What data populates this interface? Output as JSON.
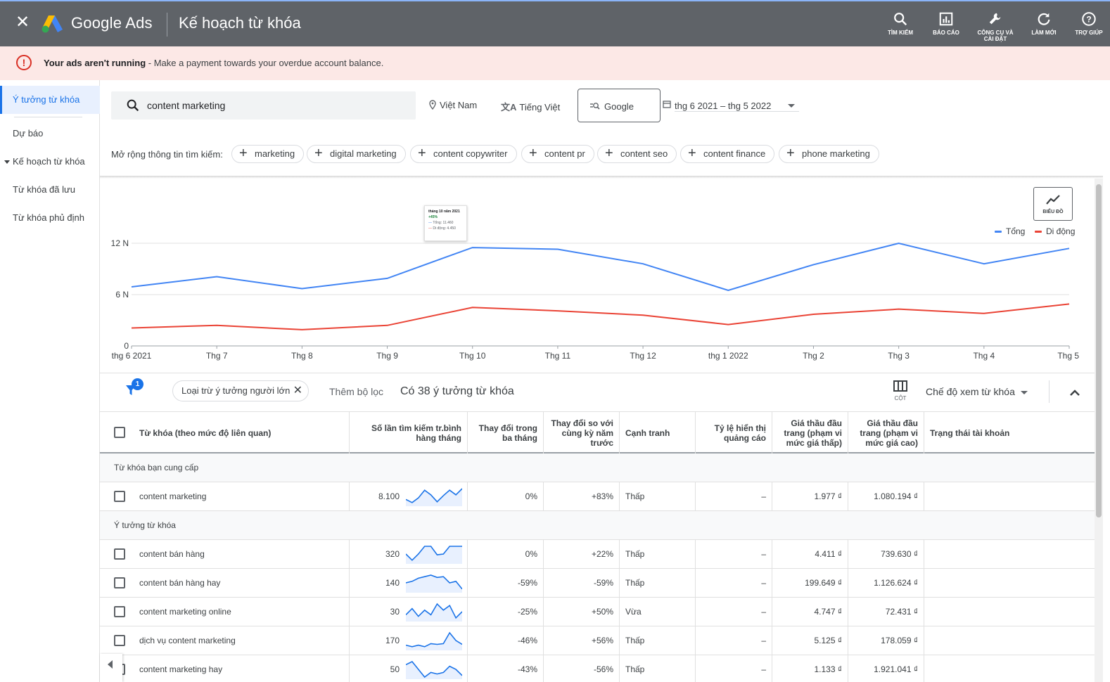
{
  "topbar": {
    "brand": "Google Ads",
    "title": "Kế hoạch từ khóa",
    "tools": [
      {
        "label": "TÌM KIẾM",
        "icon": "search-icon"
      },
      {
        "label": "BÁO CÁO",
        "icon": "report-icon"
      },
      {
        "label": "CÔNG CỤ VÀ CÀI ĐẶT",
        "icon": "wrench-icon"
      },
      {
        "label": "LÀM MỚI",
        "icon": "refresh-icon"
      },
      {
        "label": "TRỢ GIÚP",
        "icon": "help-icon"
      }
    ]
  },
  "alert": {
    "bold": "Your ads aren't running",
    "message": " - Make a payment towards your overdue account balance."
  },
  "sidebar": {
    "items": [
      {
        "label": "Ý tưởng từ khóa"
      },
      {
        "label": "Dự báo"
      },
      {
        "label": "Kế hoạch từ khóa"
      },
      {
        "label": "Từ khóa đã lưu"
      },
      {
        "label": "Từ khóa phủ định"
      }
    ]
  },
  "search": {
    "value": "content marketing",
    "location": "Việt Nam",
    "language": "Tiếng Việt",
    "network": "Google",
    "date_range": "thg 6 2021 – thg 5 2022"
  },
  "expand": {
    "label": "Mở rộng thông tin tìm kiếm:",
    "chips": [
      "marketing",
      "digital marketing",
      "content copywriter",
      "content pr",
      "content seo",
      "content finance",
      "phone marketing"
    ]
  },
  "chart_toggle": {
    "label": "BIỂU ĐỒ"
  },
  "tooltip": {
    "title": "tháng 10 năm 2021",
    "change": "+45%",
    "line1": "Tổng: 11.460",
    "line2": "Di động: 4.450"
  },
  "chart_data": {
    "type": "line",
    "categories": [
      "thg 6 2021",
      "Thg 7",
      "Thg 8",
      "Thg 9",
      "Thg 10",
      "Thg 11",
      "Thg 12",
      "thg 1 2022",
      "Thg 2",
      "Thg 3",
      "Thg 4",
      "Thg 5"
    ],
    "series": [
      {
        "name": "Tổng",
        "color": "#4285f4",
        "values": [
          6900,
          8100,
          6700,
          7900,
          11500,
          11300,
          9600,
          6500,
          9500,
          12000,
          9600,
          11400
        ]
      },
      {
        "name": "Di động",
        "color": "#ea4335",
        "values": [
          2100,
          2400,
          1900,
          2400,
          4500,
          4100,
          3600,
          2500,
          3700,
          4300,
          3800,
          4900
        ]
      }
    ],
    "yticks": [
      {
        "v": 0,
        "label": "0"
      },
      {
        "v": 6000,
        "label": "6 N"
      },
      {
        "v": 12000,
        "label": "12 N"
      }
    ],
    "ylim": [
      0,
      12000
    ],
    "legend": "top-right"
  },
  "filters": {
    "badge": "1",
    "exclude_chip": "Loại trừ ý tưởng người lớn",
    "add_filter": "Thêm bộ lọc",
    "count_text": "Có 38 ý tưởng từ khóa",
    "columns_label": "CỘT",
    "view_mode": "Chế độ xem từ khóa"
  },
  "table": {
    "headers": {
      "keyword": "Từ khóa (theo mức độ liên quan)",
      "volume": "Số lần tìm kiếm tr.bình hàng tháng",
      "three_month": "Thay đổi trong ba tháng",
      "yoy": "Thay đổi so với cùng kỳ năm trước",
      "competition": "Cạnh tranh",
      "impression_share": "Tỷ lệ hiển thị quảng cáo",
      "bid_low": "Giá thầu đầu trang (phạm vi mức giá thấp)",
      "bid_high": "Giá thầu đầu trang (phạm vi mức giá cao)",
      "status": "Trạng thái tài khoản"
    },
    "group_provided": "Từ khóa bạn cung cấp",
    "group_ideas": "Ý tưởng từ khóa",
    "provided": [
      {
        "keyword": "content marketing",
        "volume": "8.100",
        "three_month": "0%",
        "yoy": "+83%",
        "competition": "Thấp",
        "impression_share": "–",
        "bid_low": "1.977 ₫",
        "bid_high": "1.080.194 ₫",
        "trend": [
          0.3,
          0.1,
          0.4,
          0.9,
          0.6,
          0.15,
          0.55,
          0.9,
          0.6,
          1.0
        ]
      }
    ],
    "ideas": [
      {
        "keyword": "content bán hàng",
        "volume": "320",
        "three_month": "0%",
        "yoy": "+22%",
        "competition": "Thấp",
        "impression_share": "–",
        "bid_low": "4.411 ₫",
        "bid_high": "739.630 ₫",
        "trend": [
          0.5,
          0.1,
          0.5,
          1.0,
          1.0,
          0.45,
          0.5,
          1.0,
          1.0,
          1.0
        ]
      },
      {
        "keyword": "content bán hàng hay",
        "volume": "140",
        "three_month": "-59%",
        "yoy": "-59%",
        "competition": "Thấp",
        "impression_share": "–",
        "bid_low": "199.649 ₫",
        "bid_high": "1.126.624 ₫",
        "trend": [
          0.5,
          0.6,
          0.8,
          0.9,
          1.0,
          0.85,
          0.9,
          0.5,
          0.6,
          0.1
        ]
      },
      {
        "keyword": "content marketing online",
        "volume": "30",
        "three_month": "-25%",
        "yoy": "+50%",
        "competition": "Vừa",
        "impression_share": "–",
        "bid_low": "4.747 ₫",
        "bid_high": "72.431 ₫",
        "trend": [
          0.3,
          0.7,
          0.2,
          0.6,
          0.3,
          1.0,
          0.6,
          0.9,
          0.1,
          0.5
        ]
      },
      {
        "keyword": "dịch vụ content marketing",
        "volume": "170",
        "three_month": "-46%",
        "yoy": "+56%",
        "competition": "Thấp",
        "impression_share": "–",
        "bid_low": "5.125 ₫",
        "bid_high": "178.059 ₫",
        "trend": [
          0.2,
          0.1,
          0.2,
          0.1,
          0.3,
          0.25,
          0.3,
          1.0,
          0.5,
          0.25
        ]
      },
      {
        "keyword": "content marketing hay",
        "volume": "50",
        "three_month": "-43%",
        "yoy": "-56%",
        "competition": "Thấp",
        "impression_share": "–",
        "bid_low": "1.133 ₫",
        "bid_high": "1.921.041 ₫",
        "trend": [
          0.8,
          1.0,
          0.5,
          0.0,
          0.3,
          0.2,
          0.3,
          0.7,
          0.5,
          0.1
        ]
      }
    ]
  }
}
